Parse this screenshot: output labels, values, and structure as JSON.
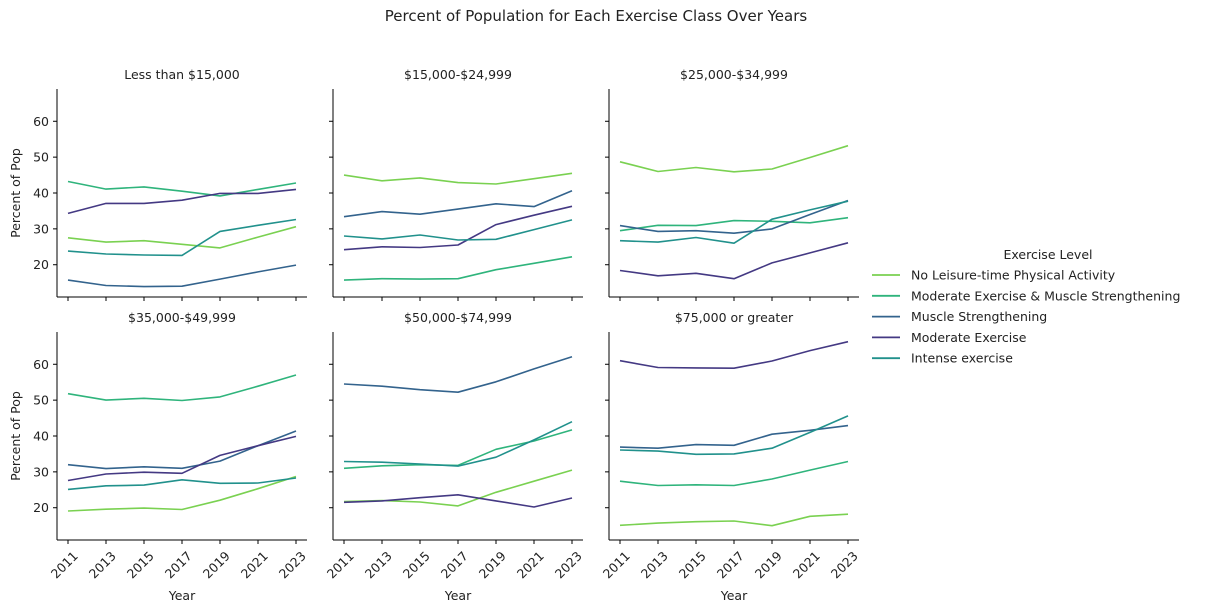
{
  "chart_data": {
    "type": "line",
    "title": "Percent of Population for Each Exercise Class Over Years",
    "ylabel": "Percent of Pop",
    "xlabel": "Year",
    "x": [
      2011,
      2013,
      2015,
      2017,
      2019,
      2021,
      2023
    ],
    "xticks": [
      "2011",
      "2013",
      "2015",
      "2017",
      "2019",
      "2021",
      "2023"
    ],
    "ylim": [
      11,
      69
    ],
    "yticks": [
      20,
      30,
      40,
      50,
      60
    ],
    "legend_title": "Exercise Level",
    "legend_position": "right",
    "grid": false,
    "series_meta": [
      {
        "name": "No Leisure-time Physical Activity",
        "color": "#7ad151"
      },
      {
        "name": "Moderate Exercise & Muscle Strengthening",
        "color": "#2fb47c"
      },
      {
        "name": "Muscle Strengthening",
        "color": "#33638d"
      },
      {
        "name": "Moderate Exercise",
        "color": "#443983"
      },
      {
        "name": "Intense exercise",
        "color": "#21918c"
      }
    ],
    "panels": [
      {
        "title": "Less than $15,000",
        "values": [
          [
            27.5,
            26.3,
            26.7,
            25.7,
            24.7,
            27.7,
            30.6
          ],
          [
            43.2,
            41.1,
            41.7,
            40.5,
            39.2,
            41.0,
            42.8
          ],
          [
            15.7,
            14.2,
            13.9,
            14.0,
            16.0,
            18.0,
            19.9
          ],
          [
            34.3,
            37.1,
            37.1,
            38.0,
            39.9,
            39.9,
            41.0
          ],
          [
            23.8,
            23.0,
            22.7,
            22.6,
            29.3,
            31.0,
            32.6
          ]
        ]
      },
      {
        "title": "$15,000-$24,999",
        "values": [
          [
            45.0,
            43.4,
            44.2,
            42.9,
            42.5,
            44.0,
            45.5
          ],
          [
            15.7,
            16.1,
            16.0,
            16.1,
            18.6,
            20.4,
            22.2
          ],
          [
            33.4,
            34.8,
            34.1,
            35.5,
            37.0,
            36.2,
            40.6
          ],
          [
            24.2,
            25.0,
            24.8,
            25.5,
            31.2,
            33.8,
            36.3
          ],
          [
            28.0,
            27.2,
            28.3,
            26.9,
            27.1,
            29.8,
            32.5
          ]
        ]
      },
      {
        "title": "$25,000-$34,999",
        "values": [
          [
            48.7,
            46.0,
            47.1,
            45.9,
            46.7,
            49.9,
            53.2
          ],
          [
            29.5,
            31.0,
            30.9,
            32.3,
            32.1,
            31.7,
            33.1
          ],
          [
            30.9,
            29.3,
            29.5,
            28.8,
            30.0,
            34.0,
            37.9
          ],
          [
            18.4,
            16.9,
            17.6,
            16.1,
            20.5,
            23.3,
            26.1
          ],
          [
            26.7,
            26.3,
            27.6,
            26.0,
            32.7,
            35.3,
            37.7
          ]
        ]
      },
      {
        "title": "$35,000-$49,999",
        "values": [
          [
            19.1,
            19.6,
            19.9,
            19.5,
            22.1,
            25.3,
            28.7
          ],
          [
            51.8,
            50.0,
            50.5,
            49.9,
            50.9,
            53.9,
            57.0
          ],
          [
            32.0,
            30.9,
            31.4,
            31.0,
            33.0,
            37.3,
            41.4
          ],
          [
            27.6,
            29.4,
            29.9,
            29.6,
            34.6,
            37.3,
            39.9
          ],
          [
            25.1,
            26.1,
            26.3,
            27.8,
            26.8,
            26.9,
            28.3
          ]
        ]
      },
      {
        "title": "$50,000-$74,999",
        "values": [
          [
            21.7,
            22.0,
            21.6,
            20.5,
            24.3,
            27.4,
            30.5
          ],
          [
            31.0,
            31.7,
            32.0,
            31.8,
            36.3,
            38.6,
            41.7
          ],
          [
            54.5,
            53.9,
            52.9,
            52.2,
            55.1,
            58.7,
            62.1
          ],
          [
            21.5,
            21.9,
            22.8,
            23.6,
            21.9,
            20.2,
            22.7
          ],
          [
            32.9,
            32.7,
            32.2,
            31.6,
            34.1,
            38.9,
            44.0
          ]
        ]
      },
      {
        "title": "$75,000 or greater",
        "values": [
          [
            15.1,
            15.7,
            16.1,
            16.3,
            15.0,
            17.6,
            18.2
          ],
          [
            27.4,
            26.2,
            26.4,
            26.2,
            28.0,
            30.5,
            32.9
          ],
          [
            36.9,
            36.6,
            37.6,
            37.4,
            40.5,
            41.6,
            42.9
          ],
          [
            61.0,
            59.1,
            59.0,
            58.9,
            60.9,
            63.8,
            66.3
          ],
          [
            36.1,
            35.8,
            34.9,
            35.0,
            36.6,
            41.0,
            45.6
          ]
        ]
      }
    ]
  }
}
